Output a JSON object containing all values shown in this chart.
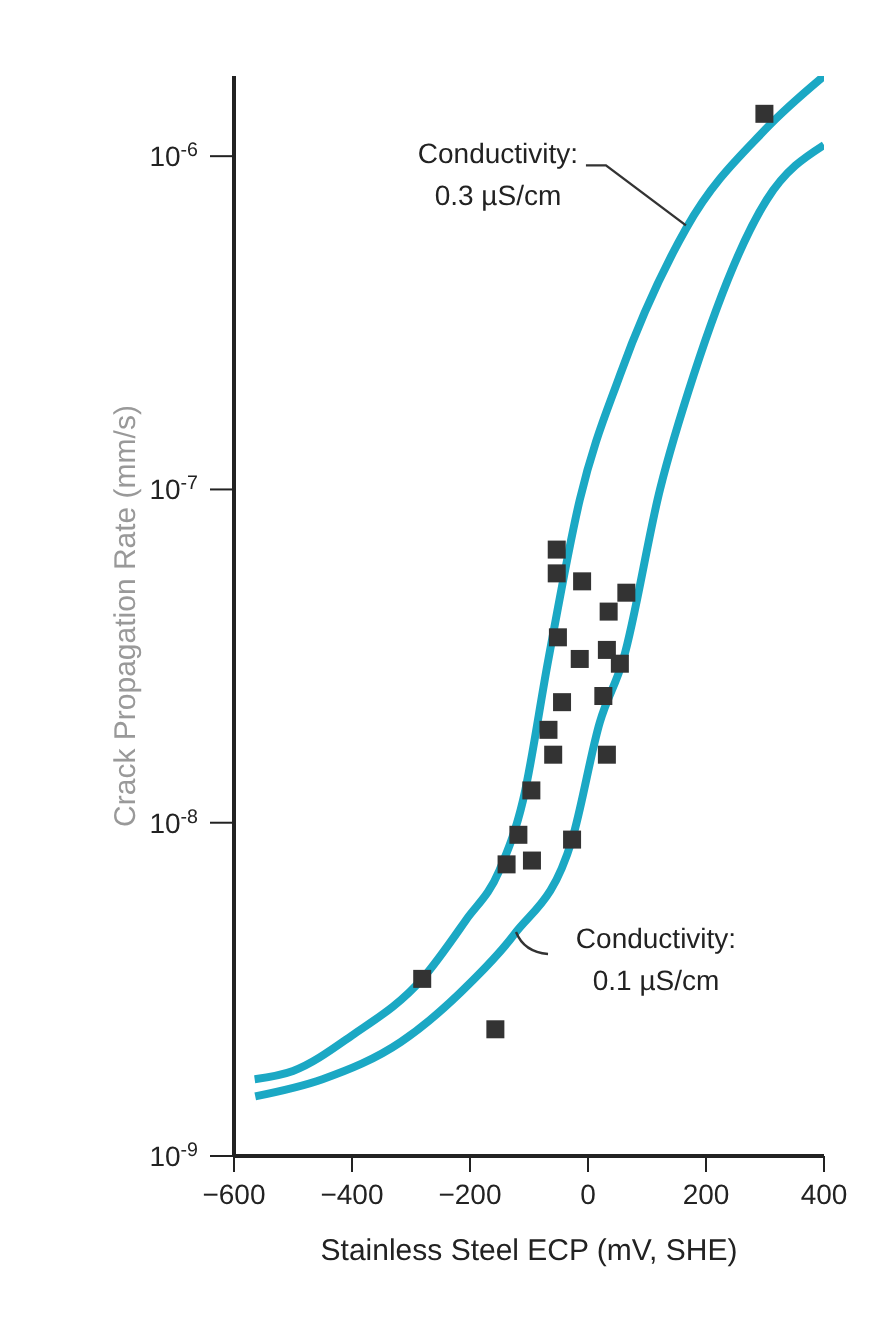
{
  "chart_data": {
    "type": "scatter",
    "xlabel": "Stainless Steel ECP (mV, SHE)",
    "ylabel": "Crack Propagation Rate (mm/s)",
    "log": "y",
    "xlim": [
      -600,
      400
    ],
    "xticks": [
      -600,
      -400,
      -200,
      0,
      200,
      400
    ],
    "ylim": [
      1e-09,
      1.74e-06
    ],
    "yticks": [
      {
        "value": 1e-09,
        "label": "10$^{-9}$"
      },
      {
        "value": 1e-08,
        "label": "10$^{-8}$"
      },
      {
        "value": 1e-07,
        "label": "10$^{-7}$"
      },
      {
        "value": 1e-06,
        "label": "10$^{-6}$"
      }
    ],
    "annotations": [
      {
        "text": "Conductivity:\n0.3 µS/cm",
        "x": 166,
        "y": 6.2e-07
      },
      {
        "text": "Conductivity:\n0.1 µS/cm",
        "x": -122,
        "y": 4.7e-09
      }
    ],
    "series": [
      {
        "color": "#333333",
        "marker": "square",
        "x": [
          -53,
          -53,
          -10,
          65,
          35,
          -51,
          -14,
          32,
          54,
          26,
          -44,
          -67,
          -59,
          32,
          -96,
          -118,
          -27,
          -138,
          -95,
          -281,
          -157,
          299
        ],
        "values": [
          6.6e-08,
          5.6e-08,
          5.3e-08,
          4.9e-08,
          4.3e-08,
          3.6e-08,
          3.1e-08,
          3.3e-08,
          3e-08,
          2.4e-08,
          2.3e-08,
          1.9e-08,
          1.6e-08,
          1.6e-08,
          1.25e-08,
          9.2e-09,
          8.9e-09,
          7.5e-09,
          7.7e-09,
          3.4e-09,
          2.4e-09,
          1.34e-06
        ]
      },
      {
        "type": "line",
        "color": "#1ba8c4",
        "x": [
          -565,
          -500,
          -400,
          -281,
          -207,
          -150,
          -110,
          -67,
          -14,
          54,
          167,
          300,
          400
        ],
        "values": [
          1.7e-09,
          1.8e-09,
          2.3e-09,
          3.4e-09,
          5.1e-09,
          7.2e-09,
          1.17e-08,
          3.1e-08,
          9.3e-08,
          2.2e-07,
          6.1e-07,
          1.2e-06,
          1.74e-06
        ]
      },
      {
        "type": "line",
        "color": "#1ba8c4",
        "x": [
          -564,
          -450,
          -317,
          -200,
          -126,
          -27,
          20,
          60,
          122,
          179,
          303,
          400
        ],
        "values": [
          1.51e-09,
          1.7e-09,
          2.2e-09,
          3.3e-09,
          4.6e-09,
          8.9e-09,
          2e-08,
          3.1e-08,
          1e-07,
          2.2e-07,
          7.4e-07,
          1.08e-06
        ]
      }
    ]
  }
}
